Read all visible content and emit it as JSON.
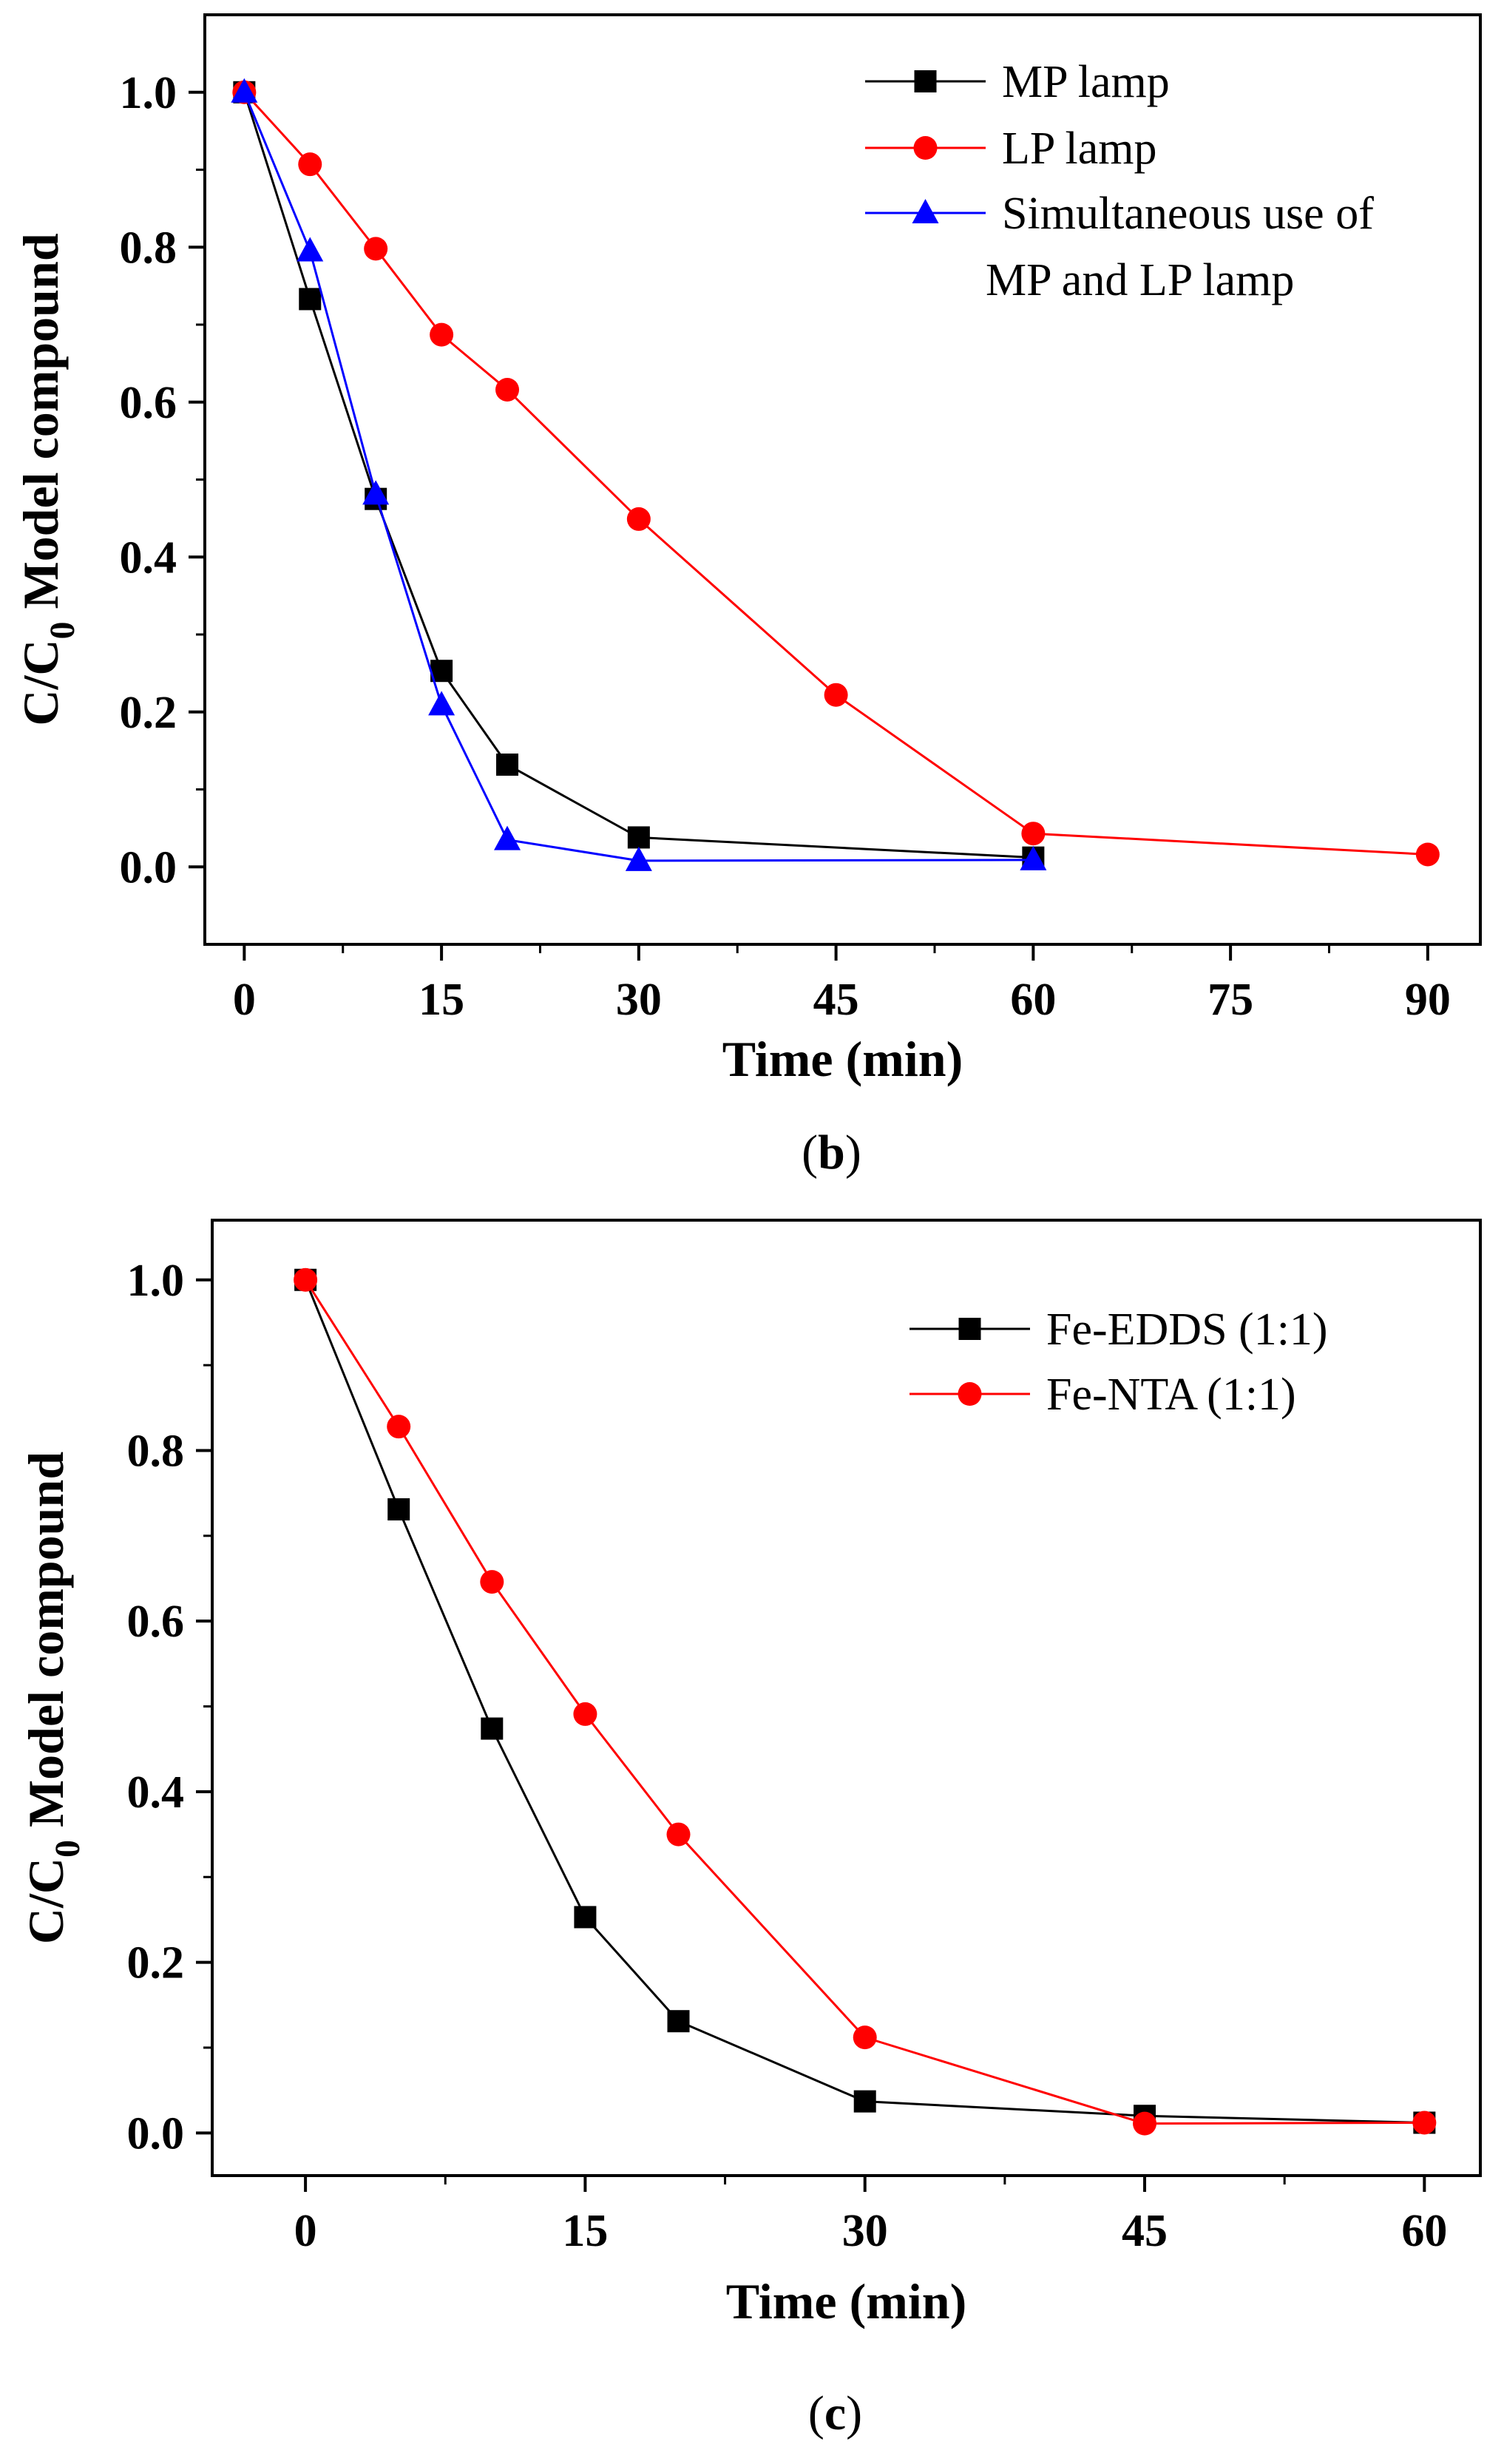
{
  "chart_data": [
    {
      "type": "line",
      "panel_label": "(b)",
      "xlabel": "Time (min)",
      "ylabel_main": "C/C",
      "ylabel_sub": "0",
      "ylabel_rest": " Model compound",
      "xlim": [
        -3,
        94
      ],
      "ylim": [
        -0.1,
        1.1
      ],
      "xticks": [
        0,
        15,
        30,
        45,
        60,
        75,
        90
      ],
      "yticks": [
        0.0,
        0.2,
        0.4,
        0.6,
        0.8,
        1.0
      ],
      "xtick_labels": [
        "0",
        "15",
        "30",
        "45",
        "60",
        "75",
        "90"
      ],
      "ytick_labels": [
        "0.0",
        "0.2",
        "0.4",
        "0.6",
        "0.8",
        "1.0"
      ],
      "legend_position": "top-right",
      "series": [
        {
          "name": "MP lamp",
          "legend_lines": [
            "MP lamp"
          ],
          "color": "#000000",
          "marker": "square",
          "x": [
            0,
            5,
            10,
            15,
            20,
            30,
            60
          ],
          "y": [
            1.0,
            0.733,
            0.475,
            0.253,
            0.132,
            0.038,
            0.012
          ]
        },
        {
          "name": "LP lamp",
          "legend_lines": [
            "LP lamp"
          ],
          "color": "#ff0000",
          "marker": "circle",
          "x": [
            0,
            5,
            10,
            15,
            20,
            30,
            45,
            60,
            90
          ],
          "y": [
            1.0,
            0.907,
            0.798,
            0.687,
            0.616,
            0.449,
            0.222,
            0.043,
            0.016
          ]
        },
        {
          "name": "Simultaneous use of MP and LP lamp",
          "legend_lines": [
            "Simultaneous use of",
            "MP and LP lamp"
          ],
          "color": "#0000ff",
          "marker": "triangle",
          "x": [
            0,
            5,
            10,
            15,
            20,
            30,
            60
          ],
          "y": [
            1.0,
            0.795,
            0.481,
            0.209,
            0.035,
            0.008,
            0.009
          ]
        }
      ]
    },
    {
      "type": "line",
      "panel_label": "(c)",
      "xlabel": "Time (min)",
      "ylabel_main": "C/C",
      "ylabel_sub": "0",
      "ylabel_rest": " Model compound",
      "xlim": [
        -5,
        63
      ],
      "ylim": [
        -0.05,
        1.07
      ],
      "xticks": [
        0,
        15,
        30,
        45,
        60
      ],
      "yticks": [
        0.0,
        0.2,
        0.4,
        0.6,
        0.8,
        1.0
      ],
      "xtick_labels": [
        "0",
        "15",
        "30",
        "45",
        "60"
      ],
      "ytick_labels": [
        "0.0",
        "0.2",
        "0.4",
        "0.6",
        "0.8",
        "1.0"
      ],
      "legend_position": "top-right",
      "series": [
        {
          "name": "Fe-EDDS (1:1)",
          "legend_lines": [
            "Fe-EDDS (1:1)"
          ],
          "color": "#000000",
          "marker": "square",
          "x": [
            0,
            5,
            10,
            15,
            20,
            30,
            45,
            60
          ],
          "y": [
            1.0,
            0.731,
            0.474,
            0.253,
            0.131,
            0.037,
            0.02,
            0.012
          ]
        },
        {
          "name": "Fe-NTA (1:1)",
          "legend_lines": [
            "Fe-NTA (1:1)"
          ],
          "color": "#ff0000",
          "marker": "circle",
          "x": [
            0,
            5,
            10,
            15,
            20,
            30,
            45,
            60
          ],
          "y": [
            1.0,
            0.828,
            0.646,
            0.491,
            0.35,
            0.112,
            0.011,
            0.012
          ]
        }
      ]
    }
  ]
}
